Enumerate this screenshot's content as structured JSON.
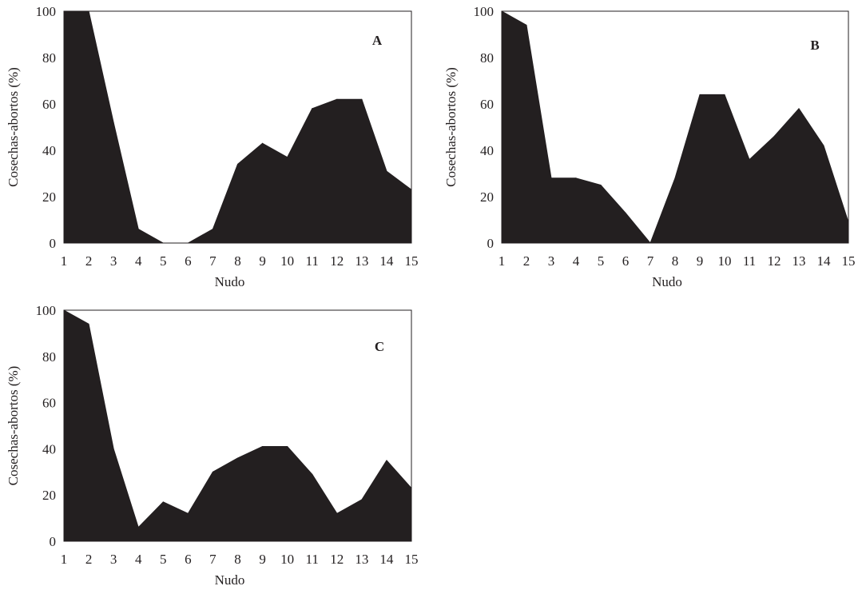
{
  "chart_data": [
    {
      "type": "area",
      "panel_label": "A",
      "categories": [
        "1",
        "2",
        "3",
        "4",
        "5",
        "6",
        "7",
        "8",
        "9",
        "10",
        "11",
        "12",
        "13",
        "14",
        "15"
      ],
      "values": [
        100,
        100,
        52,
        6,
        0,
        0,
        6,
        34,
        43,
        37,
        58,
        62,
        62,
        31,
        23
      ],
      "xlabel": "Nudo",
      "ylabel": "Cosechas-abortos (%)",
      "ylim": [
        0,
        100
      ],
      "yticks": [
        "0",
        "20",
        "40",
        "60",
        "80",
        "100"
      ],
      "color": "#231f20",
      "grid": false
    },
    {
      "type": "area",
      "panel_label": "B",
      "categories": [
        "1",
        "2",
        "3",
        "4",
        "5",
        "6",
        "7",
        "8",
        "9",
        "10",
        "11",
        "12",
        "13",
        "14",
        "15"
      ],
      "values": [
        100,
        94,
        28,
        28,
        25,
        13,
        0,
        28,
        64,
        64,
        36,
        46,
        58,
        42,
        9
      ],
      "xlabel": "Nudo",
      "ylabel": "Cosechas-abortos (%)",
      "ylim": [
        0,
        100
      ],
      "yticks": [
        "0",
        "20",
        "40",
        "60",
        "80",
        "100"
      ],
      "color": "#231f20",
      "grid": false
    },
    {
      "type": "area",
      "panel_label": "C",
      "categories": [
        "1",
        "2",
        "3",
        "4",
        "5",
        "6",
        "7",
        "8",
        "9",
        "10",
        "11",
        "12",
        "13",
        "14",
        "15"
      ],
      "values": [
        100,
        94,
        40,
        6,
        17,
        12,
        30,
        36,
        41,
        41,
        29,
        12,
        18,
        35,
        23
      ],
      "xlabel": "Nudo",
      "ylabel": "Cosechas-abortos (%)",
      "ylim": [
        0,
        100
      ],
      "yticks": [
        "0",
        "20",
        "40",
        "60",
        "80",
        "100"
      ],
      "color": "#231f20",
      "grid": false
    }
  ]
}
